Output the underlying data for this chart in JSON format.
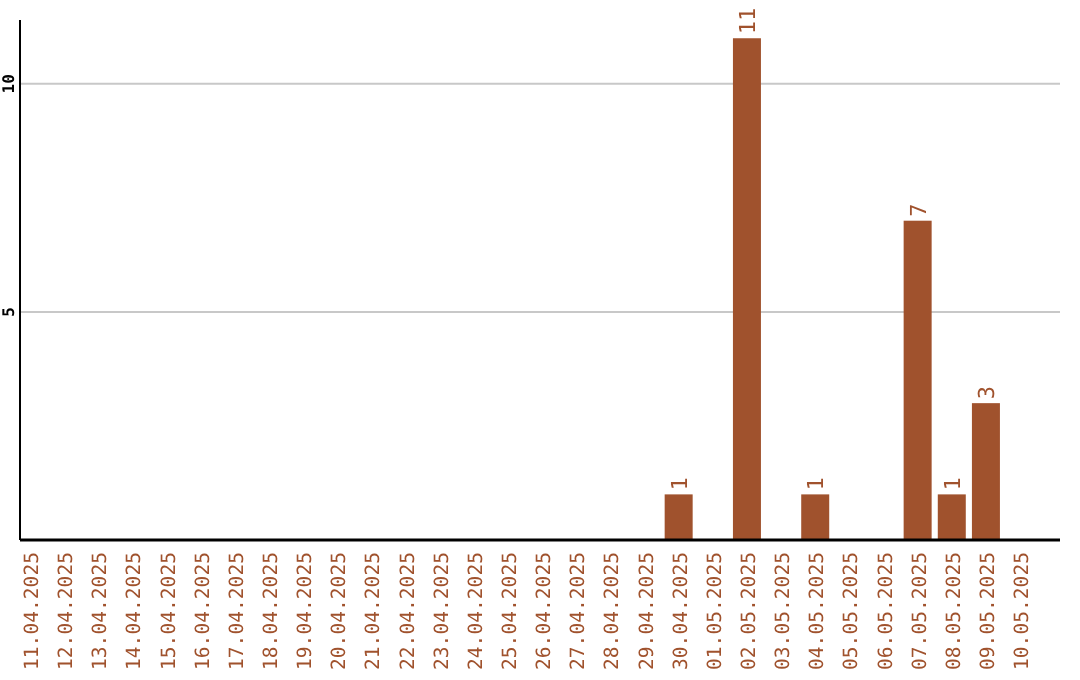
{
  "chart_data": {
    "type": "bar",
    "categories": [
      "11.04.2025",
      "12.04.2025",
      "13.04.2025",
      "14.04.2025",
      "15.04.2025",
      "16.04.2025",
      "17.04.2025",
      "18.04.2025",
      "19.04.2025",
      "20.04.2025",
      "21.04.2025",
      "22.04.2025",
      "23.04.2025",
      "24.04.2025",
      "25.04.2025",
      "26.04.2025",
      "27.04.2025",
      "28.04.2025",
      "29.04.2025",
      "30.04.2025",
      "01.05.2025",
      "02.05.2025",
      "03.05.2025",
      "04.05.2025",
      "05.05.2025",
      "06.05.2025",
      "07.05.2025",
      "08.05.2025",
      "09.05.2025",
      "10.05.2025"
    ],
    "values": [
      0,
      0,
      0,
      0,
      0,
      0,
      0,
      0,
      0,
      0,
      0,
      0,
      0,
      0,
      0,
      0,
      0,
      0,
      0,
      1,
      0,
      11,
      0,
      1,
      0,
      0,
      7,
      1,
      3,
      0
    ],
    "value_labels": [
      null,
      null,
      null,
      null,
      null,
      null,
      null,
      null,
      null,
      null,
      null,
      null,
      null,
      null,
      null,
      null,
      null,
      null,
      null,
      "1",
      null,
      "11",
      null,
      "1",
      null,
      null,
      "7",
      "1",
      "3",
      null
    ],
    "color": "#a0522d",
    "ylim": [
      0,
      11.4
    ],
    "yticks": [
      5,
      10
    ],
    "grid": "y"
  }
}
